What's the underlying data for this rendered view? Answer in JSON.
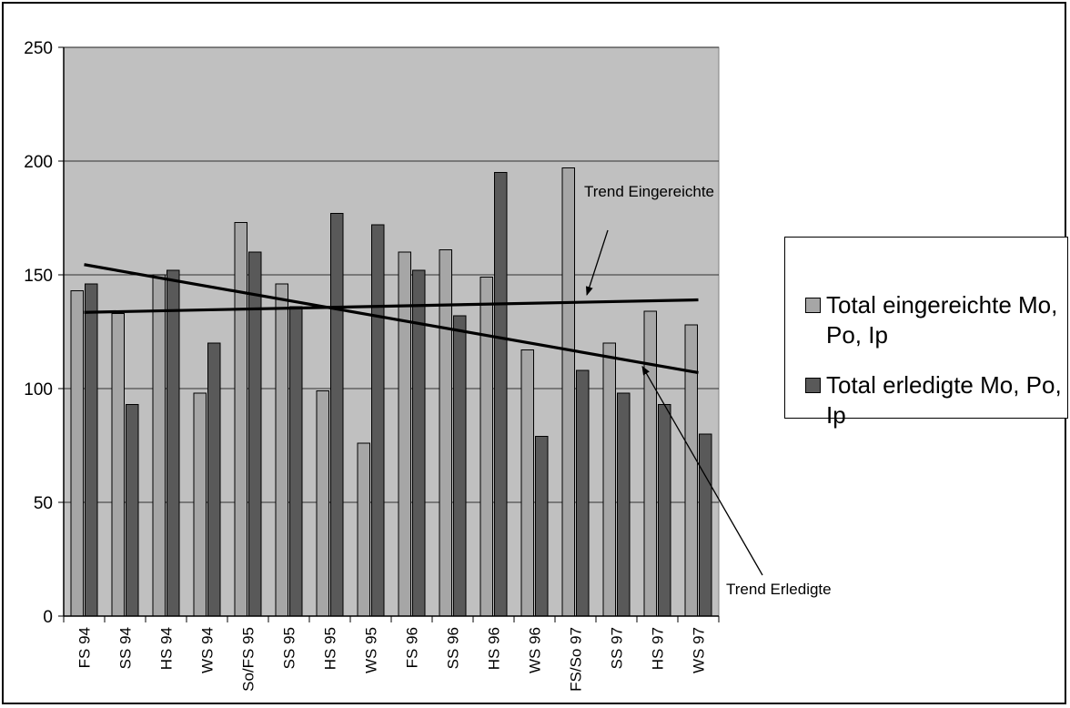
{
  "chart_data": {
    "type": "bar",
    "categories": [
      "FS 94",
      "SS 94",
      "HS 94",
      "WS 94",
      "So/FS 95",
      "SS 95",
      "HS 95",
      "WS 95",
      "FS 96",
      "SS 96",
      "HS 96",
      "WS 96",
      "FS/So 97",
      "SS 97",
      "HS 97",
      "WS 97"
    ],
    "series": [
      {
        "name": "Total eingereichte Mo, Po, Ip",
        "color": "#a6a6a6",
        "values": [
          143,
          133,
          150,
          98,
          173,
          146,
          99,
          76,
          160,
          161,
          149,
          117,
          197,
          120,
          134,
          128
        ]
      },
      {
        "name": "Total erledigte Mo, Po, Ip",
        "color": "#595959",
        "values": [
          146,
          93,
          152,
          120,
          160,
          136,
          177,
          172,
          152,
          132,
          195,
          79,
          108,
          98,
          93,
          80
        ]
      }
    ],
    "ylim": [
      0,
      250
    ],
    "yticks": [
      0,
      50,
      100,
      150,
      200,
      250
    ],
    "grid": true,
    "legend_position": "right",
    "plot_background": "#c0c0c0",
    "trendlines": [
      {
        "name": "Trend Eingereichte",
        "start": 133.5,
        "end": 139
      },
      {
        "name": "Trend Erledigte",
        "start": 154.5,
        "end": 107
      }
    ],
    "annotations": [
      {
        "text": "Trend Eingereichte",
        "points_to": "Trend Eingereichte"
      },
      {
        "text": "Trend Erledigte",
        "points_to": "Trend Erledigte"
      }
    ]
  }
}
